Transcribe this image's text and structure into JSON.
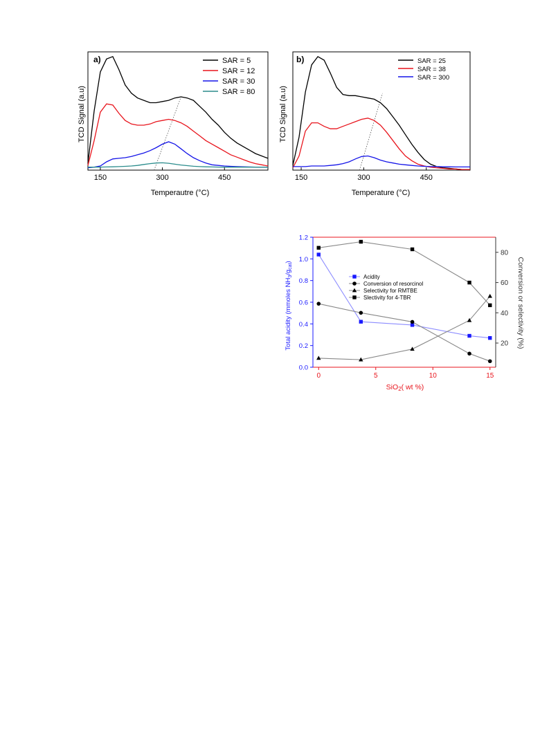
{
  "chart_data": [
    {
      "type": "line",
      "panel_label": "a)",
      "xlabel": "Temperautre (°C)",
      "ylabel": "TCD Signal (a.u)",
      "xlim": [
        120,
        555
      ],
      "ylim": [
        0,
        10
      ],
      "x_ticks": [
        "150",
        "300",
        "450"
      ],
      "x_tick_values": [
        150,
        300,
        450
      ],
      "legend_position": "top-right",
      "series": [
        {
          "name": "SAR = 5",
          "color": "#000000",
          "x": [
            120,
            135,
            150,
            165,
            180,
            195,
            210,
            225,
            240,
            255,
            270,
            285,
            300,
            315,
            330,
            345,
            360,
            375,
            390,
            405,
            420,
            435,
            450,
            465,
            480,
            495,
            510,
            525,
            540,
            555
          ],
          "y": [
            0.6,
            5.0,
            8.3,
            9.4,
            9.6,
            8.5,
            7.2,
            6.5,
            6.1,
            5.9,
            5.7,
            5.7,
            5.8,
            5.9,
            6.1,
            6.2,
            6.1,
            5.9,
            5.4,
            4.9,
            4.3,
            3.8,
            3.2,
            2.7,
            2.3,
            2.0,
            1.7,
            1.4,
            1.2,
            1.0
          ]
        },
        {
          "name": "SAR = 12",
          "color": "#e8141c",
          "x": [
            120,
            135,
            150,
            165,
            180,
            195,
            210,
            225,
            240,
            255,
            270,
            285,
            300,
            315,
            330,
            345,
            360,
            375,
            390,
            405,
            420,
            435,
            450,
            465,
            480,
            495,
            510,
            525,
            540,
            555
          ],
          "y": [
            0.4,
            2.5,
            4.9,
            5.6,
            5.5,
            4.8,
            4.2,
            3.9,
            3.8,
            3.8,
            3.9,
            4.1,
            4.2,
            4.3,
            4.2,
            4.0,
            3.7,
            3.3,
            2.9,
            2.5,
            2.2,
            1.9,
            1.6,
            1.3,
            1.1,
            0.9,
            0.7,
            0.55,
            0.45,
            0.35
          ]
        },
        {
          "name": "SAR = 30",
          "color": "#1414e8",
          "x": [
            120,
            135,
            150,
            165,
            180,
            195,
            210,
            225,
            240,
            255,
            270,
            285,
            300,
            315,
            330,
            345,
            360,
            375,
            390,
            405,
            420,
            435,
            450,
            465,
            480,
            495,
            510,
            525,
            540,
            555
          ],
          "y": [
            0.2,
            0.25,
            0.35,
            0.7,
            0.95,
            1.0,
            1.05,
            1.15,
            1.3,
            1.45,
            1.65,
            1.9,
            2.2,
            2.4,
            2.2,
            1.8,
            1.4,
            1.05,
            0.8,
            0.6,
            0.45,
            0.4,
            0.35,
            0.32,
            0.3,
            0.28,
            0.27,
            0.26,
            0.25,
            0.25
          ]
        },
        {
          "name": "SAR = 80",
          "color": "#2a8c8c",
          "x": [
            120,
            135,
            150,
            165,
            180,
            195,
            210,
            225,
            240,
            255,
            270,
            285,
            300,
            315,
            330,
            345,
            360,
            375,
            390,
            405,
            420,
            435,
            450,
            465,
            480,
            495,
            510,
            525,
            540,
            555
          ],
          "y": [
            0.25,
            0.25,
            0.26,
            0.27,
            0.28,
            0.3,
            0.32,
            0.35,
            0.4,
            0.48,
            0.55,
            0.6,
            0.62,
            0.58,
            0.5,
            0.43,
            0.38,
            0.33,
            0.3,
            0.28,
            0.27,
            0.26,
            0.25,
            0.25,
            0.25,
            0.25,
            0.25,
            0.25,
            0.25,
            0.25
          ]
        }
      ]
    },
    {
      "type": "line",
      "panel_label": "b)",
      "xlabel": "Temperature (°C)",
      "ylabel": "TCD Signal (a.u)",
      "xlim": [
        130,
        555
      ],
      "ylim": [
        0,
        10
      ],
      "x_ticks": [
        "150",
        "300",
        "450"
      ],
      "x_tick_values": [
        150,
        300,
        450
      ],
      "legend_position": "top-right",
      "series": [
        {
          "name": "SAR = 25",
          "color": "#000000",
          "x": [
            130,
            145,
            160,
            175,
            190,
            205,
            220,
            235,
            250,
            265,
            280,
            295,
            310,
            325,
            340,
            355,
            370,
            385,
            400,
            415,
            430,
            445,
            460,
            475,
            490,
            505,
            520,
            535,
            555
          ],
          "y": [
            0.4,
            2.8,
            6.6,
            8.9,
            9.6,
            9.3,
            8.2,
            7.0,
            6.4,
            6.3,
            6.3,
            6.2,
            6.1,
            6.0,
            5.7,
            5.2,
            4.5,
            3.8,
            3.0,
            2.2,
            1.5,
            0.9,
            0.5,
            0.3,
            0.2,
            0.15,
            0.1,
            0.05,
            0.0
          ]
        },
        {
          "name": "SAR = 38",
          "color": "#e8141c",
          "x": [
            130,
            145,
            160,
            175,
            190,
            205,
            220,
            235,
            250,
            265,
            280,
            295,
            310,
            325,
            340,
            355,
            370,
            385,
            400,
            415,
            430,
            445,
            460,
            475,
            490,
            505,
            520,
            535,
            555
          ],
          "y": [
            0.2,
            1.2,
            3.3,
            4.0,
            4.0,
            3.7,
            3.5,
            3.5,
            3.7,
            3.9,
            4.1,
            4.3,
            4.4,
            4.2,
            3.8,
            3.2,
            2.5,
            1.8,
            1.2,
            0.8,
            0.5,
            0.35,
            0.25,
            0.2,
            0.15,
            0.1,
            0.1,
            0.05,
            0.05
          ]
        },
        {
          "name": "SAR = 300",
          "color": "#1414e8",
          "x": [
            130,
            145,
            160,
            175,
            190,
            205,
            220,
            235,
            250,
            265,
            280,
            295,
            310,
            325,
            340,
            355,
            370,
            385,
            400,
            415,
            430,
            445,
            460,
            475,
            490,
            505,
            520,
            535,
            555
          ],
          "y": [
            0.3,
            0.3,
            0.3,
            0.35,
            0.35,
            0.35,
            0.4,
            0.45,
            0.55,
            0.7,
            0.95,
            1.15,
            1.2,
            1.05,
            0.85,
            0.7,
            0.6,
            0.5,
            0.45,
            0.4,
            0.35,
            0.32,
            0.3,
            0.3,
            0.28,
            0.28,
            0.27,
            0.27,
            0.27
          ]
        }
      ]
    },
    {
      "type": "line",
      "xlabel": "SiO2( wt %)",
      "ylabel": "Total acidity (mmoles NH3/gcat)",
      "y2label": "Conversion or selectivity (%)",
      "xlim": [
        -0.5,
        15.5
      ],
      "ylim": [
        0,
        1.2
      ],
      "y2lim": [
        4,
        90
      ],
      "x_ticks": [
        "0",
        "5",
        "10",
        "15"
      ],
      "y_ticks": [
        "0.0",
        "0.2",
        "0.4",
        "0.6",
        "0.8",
        "1.0",
        "1.2"
      ],
      "y2_ticks": [
        "20",
        "40",
        "60",
        "80"
      ],
      "legend_position": "center",
      "series": [
        {
          "name": "Acidity",
          "axis": "left",
          "color": "#1a1aff",
          "marker": "square",
          "x": [
            0,
            3.7,
            8.2,
            13.2,
            15
          ],
          "y": [
            1.04,
            0.42,
            0.39,
            0.29,
            0.27
          ]
        },
        {
          "name": "Conversion of resorcinol",
          "axis": "right",
          "color": "#000000",
          "marker": "circle",
          "x": [
            0,
            3.7,
            8.2,
            13.2,
            15
          ],
          "y": [
            46,
            40,
            34,
            13,
            8
          ]
        },
        {
          "name": "Selectivity for RMTBE",
          "axis": "right",
          "color": "#000000",
          "marker": "triangle",
          "x": [
            0,
            3.7,
            8.2,
            13.2,
            15
          ],
          "y": [
            10,
            9,
            16,
            35,
            51
          ]
        },
        {
          "name": "Slectivity for 4-TBR",
          "axis": "right",
          "color": "#000000",
          "marker": "square",
          "x": [
            0,
            3.7,
            8.2,
            13.2,
            15
          ],
          "y": [
            83,
            87,
            82,
            60,
            45
          ]
        }
      ]
    }
  ]
}
